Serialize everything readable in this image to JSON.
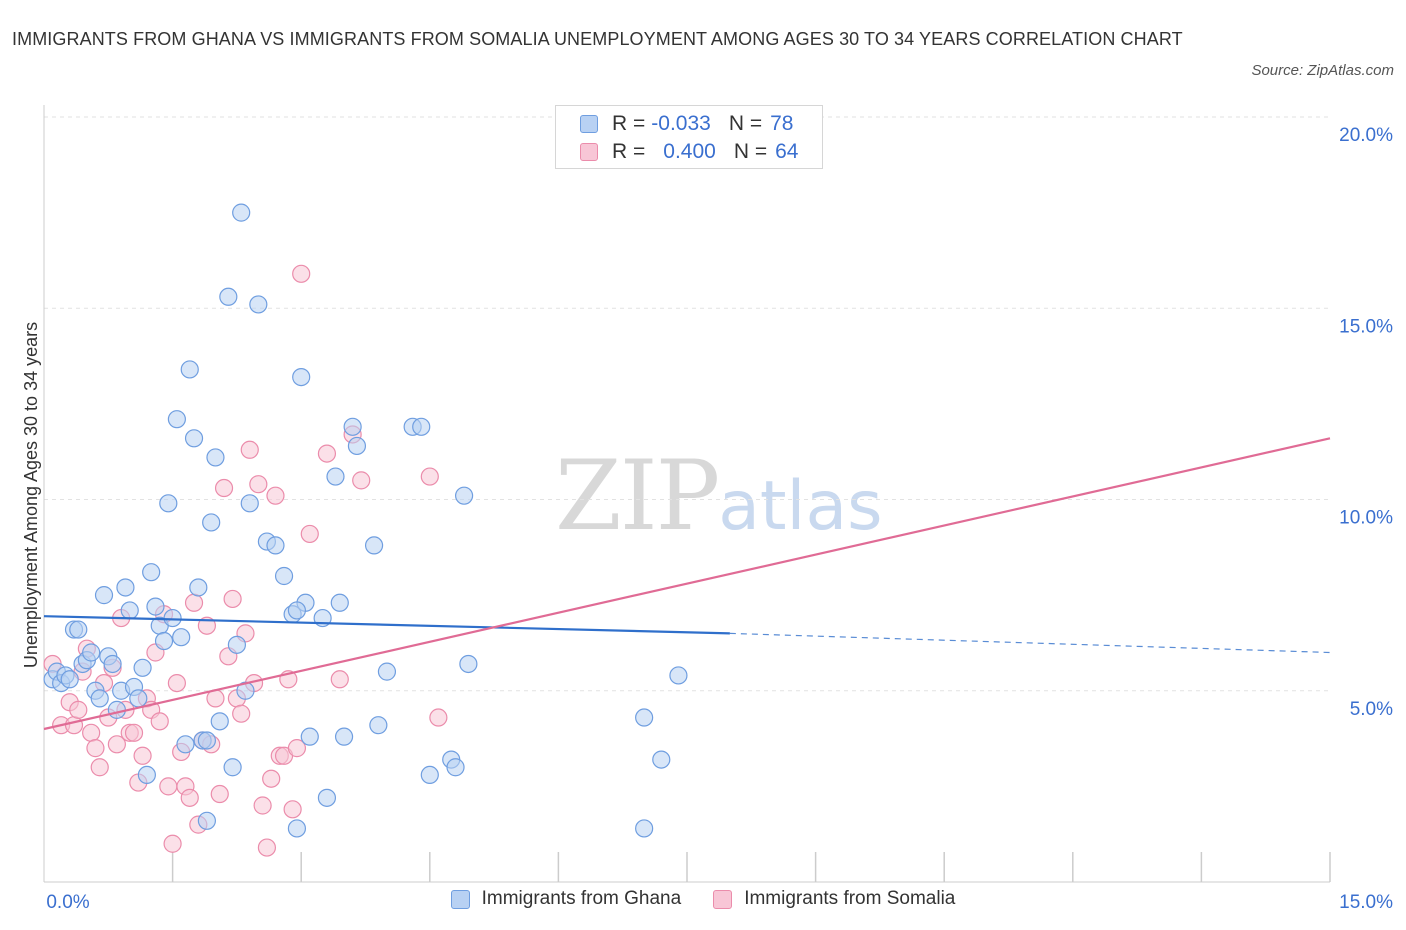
{
  "title": "IMMIGRANTS FROM GHANA VS IMMIGRANTS FROM SOMALIA UNEMPLOYMENT AMONG AGES 30 TO 34 YEARS CORRELATION CHART",
  "source": "Source: ZipAtlas.com",
  "watermark": {
    "zip": "ZIP",
    "atlas": "atlas"
  },
  "legend": {
    "rows": [
      {
        "r_label": "R =",
        "r_value": "-0.033",
        "n_label": "N =",
        "n_value": "78"
      },
      {
        "r_label": "R =",
        "r_value": "0.400",
        "n_label": "N =",
        "n_value": "64"
      }
    ]
  },
  "bottom_legend": [
    "Immigrants from Ghana",
    "Immigrants from Somalia"
  ],
  "colors": {
    "ghana_fill": "#b8d1f3",
    "ghana_stroke": "#6f9ee0",
    "ghana_line": "#2f6fcb",
    "somalia_fill": "#f8c6d6",
    "somalia_stroke": "#eb8cab",
    "somalia_line": "#e06b95",
    "grid": "#e2e2e2",
    "tick_text": "#3a6fcf"
  },
  "chart_data": {
    "type": "scatter",
    "title": "IMMIGRANTS FROM GHANA VS IMMIGRANTS FROM SOMALIA UNEMPLOYMENT AMONG AGES 30 TO 34 YEARS CORRELATION CHART",
    "xlabel": "",
    "ylabel": "Unemployment Among Ages 30 to 34 years",
    "xlim": [
      0,
      15
    ],
    "ylim": [
      0,
      20
    ],
    "x_tick_labels": [
      "0.0%",
      "15.0%"
    ],
    "y_ticks": [
      5,
      10,
      15,
      20
    ],
    "y_tick_labels": [
      "5.0%",
      "10.0%",
      "15.0%",
      "20.0%"
    ],
    "grid": "horizontal dashed",
    "legend_position": "top-center",
    "series": [
      {
        "name": "Immigrants from Ghana",
        "r": -0.033,
        "n": 78,
        "trend": {
          "x": [
            0,
            8.0
          ],
          "y": [
            6.95,
            6.5
          ],
          "dashed_to": [
            15,
            6.0
          ]
        },
        "points": [
          [
            0.1,
            5.3
          ],
          [
            0.15,
            5.5
          ],
          [
            0.2,
            5.2
          ],
          [
            0.25,
            5.4
          ],
          [
            0.3,
            5.3
          ],
          [
            0.35,
            6.6
          ],
          [
            0.4,
            6.6
          ],
          [
            0.45,
            5.7
          ],
          [
            0.5,
            5.8
          ],
          [
            0.55,
            6.0
          ],
          [
            0.6,
            5.0
          ],
          [
            0.65,
            4.8
          ],
          [
            0.7,
            7.5
          ],
          [
            0.75,
            5.9
          ],
          [
            0.8,
            5.7
          ],
          [
            0.85,
            4.5
          ],
          [
            0.9,
            5.0
          ],
          [
            0.95,
            7.7
          ],
          [
            1.0,
            7.1
          ],
          [
            1.05,
            5.1
          ],
          [
            1.1,
            4.8
          ],
          [
            1.15,
            5.6
          ],
          [
            1.2,
            2.8
          ],
          [
            1.25,
            8.1
          ],
          [
            1.3,
            7.2
          ],
          [
            1.35,
            6.7
          ],
          [
            1.4,
            6.3
          ],
          [
            1.45,
            9.9
          ],
          [
            1.5,
            6.9
          ],
          [
            1.55,
            12.1
          ],
          [
            1.6,
            6.4
          ],
          [
            1.65,
            3.6
          ],
          [
            1.7,
            13.4
          ],
          [
            1.75,
            11.6
          ],
          [
            1.8,
            7.7
          ],
          [
            1.85,
            3.7
          ],
          [
            1.9,
            1.6
          ],
          [
            1.95,
            9.4
          ],
          [
            2.0,
            11.1
          ],
          [
            2.05,
            4.2
          ],
          [
            2.15,
            15.3
          ],
          [
            2.2,
            3.0
          ],
          [
            2.25,
            6.2
          ],
          [
            2.3,
            17.5
          ],
          [
            2.35,
            5.0
          ],
          [
            2.4,
            9.9
          ],
          [
            2.5,
            15.1
          ],
          [
            2.6,
            8.9
          ],
          [
            2.7,
            8.8
          ],
          [
            2.8,
            8.0
          ],
          [
            2.9,
            7.0
          ],
          [
            2.95,
            1.4
          ],
          [
            3.0,
            13.2
          ],
          [
            3.05,
            7.3
          ],
          [
            3.1,
            3.8
          ],
          [
            3.3,
            2.2
          ],
          [
            3.4,
            10.6
          ],
          [
            3.45,
            7.3
          ],
          [
            3.5,
            3.8
          ],
          [
            3.6,
            11.9
          ],
          [
            3.65,
            11.4
          ],
          [
            3.85,
            8.8
          ],
          [
            3.9,
            4.1
          ],
          [
            4.0,
            5.5
          ],
          [
            4.3,
            11.9
          ],
          [
            4.4,
            11.9
          ],
          [
            4.5,
            2.8
          ],
          [
            4.75,
            3.2
          ],
          [
            4.8,
            3.0
          ],
          [
            4.9,
            10.1
          ],
          [
            4.95,
            5.7
          ],
          [
            7.0,
            4.3
          ],
          [
            7.0,
            1.4
          ],
          [
            7.2,
            3.2
          ],
          [
            7.4,
            5.4
          ],
          [
            2.95,
            7.1
          ],
          [
            3.25,
            6.9
          ],
          [
            1.9,
            3.7
          ]
        ]
      },
      {
        "name": "Immigrants from Somalia",
        "r": 0.4,
        "n": 64,
        "trend": {
          "x": [
            0,
            15
          ],
          "y": [
            4.0,
            11.6
          ]
        },
        "points": [
          [
            0.1,
            5.7
          ],
          [
            0.2,
            4.1
          ],
          [
            0.3,
            4.7
          ],
          [
            0.35,
            4.1
          ],
          [
            0.4,
            4.5
          ],
          [
            0.45,
            5.5
          ],
          [
            0.5,
            6.1
          ],
          [
            0.55,
            3.9
          ],
          [
            0.6,
            3.5
          ],
          [
            0.65,
            3.0
          ],
          [
            0.7,
            5.2
          ],
          [
            0.75,
            4.3
          ],
          [
            0.8,
            5.6
          ],
          [
            0.85,
            3.6
          ],
          [
            0.9,
            6.9
          ],
          [
            0.95,
            4.5
          ],
          [
            1.0,
            3.9
          ],
          [
            1.05,
            3.9
          ],
          [
            1.1,
            2.6
          ],
          [
            1.15,
            3.3
          ],
          [
            1.2,
            4.8
          ],
          [
            1.25,
            4.5
          ],
          [
            1.3,
            6.0
          ],
          [
            1.35,
            4.2
          ],
          [
            1.4,
            7.0
          ],
          [
            1.45,
            2.5
          ],
          [
            1.5,
            1.0
          ],
          [
            1.55,
            5.2
          ],
          [
            1.6,
            3.4
          ],
          [
            1.65,
            2.5
          ],
          [
            1.7,
            2.2
          ],
          [
            1.75,
            7.3
          ],
          [
            1.8,
            1.5
          ],
          [
            1.85,
            3.7
          ],
          [
            1.9,
            6.7
          ],
          [
            1.95,
            3.6
          ],
          [
            2.0,
            4.8
          ],
          [
            2.05,
            2.3
          ],
          [
            2.1,
            10.3
          ],
          [
            2.15,
            5.9
          ],
          [
            2.2,
            7.4
          ],
          [
            2.25,
            4.8
          ],
          [
            2.3,
            4.4
          ],
          [
            2.35,
            6.5
          ],
          [
            2.4,
            11.3
          ],
          [
            2.45,
            5.2
          ],
          [
            2.5,
            10.4
          ],
          [
            2.55,
            2.0
          ],
          [
            2.6,
            0.9
          ],
          [
            2.65,
            2.7
          ],
          [
            2.7,
            10.1
          ],
          [
            2.75,
            3.3
          ],
          [
            2.8,
            3.3
          ],
          [
            2.85,
            5.3
          ],
          [
            2.9,
            1.9
          ],
          [
            2.95,
            3.5
          ],
          [
            3.0,
            15.9
          ],
          [
            3.1,
            9.1
          ],
          [
            3.3,
            11.2
          ],
          [
            3.45,
            5.3
          ],
          [
            3.6,
            11.7
          ],
          [
            3.7,
            10.5
          ],
          [
            4.5,
            10.6
          ],
          [
            4.6,
            4.3
          ]
        ]
      }
    ]
  }
}
